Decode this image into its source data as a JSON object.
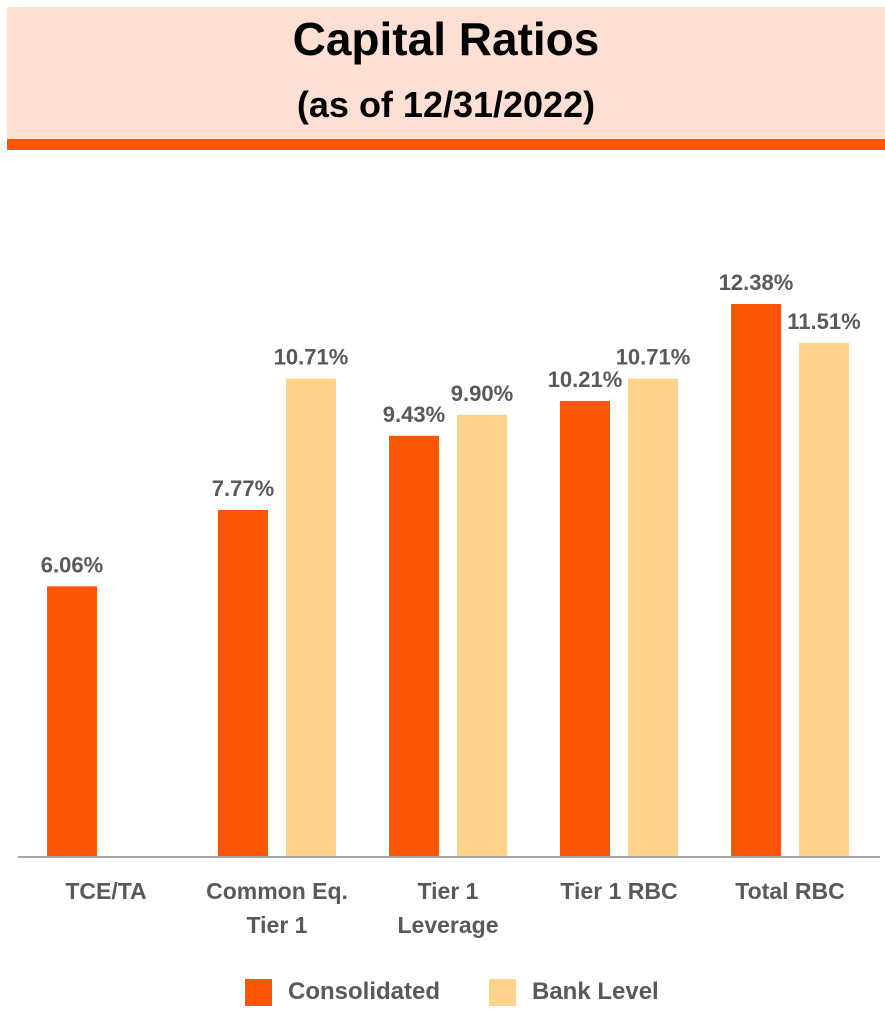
{
  "header": {
    "title": "Capital Ratios",
    "subtitle": "(as of 12/31/2022)"
  },
  "colors": {
    "banner_bg": "#fde0d3",
    "accent": "#fb5607",
    "consolidated": "#fb5607",
    "bank_level": "#fdd38c",
    "label_text": "#595959",
    "axis": "#a6a6a6"
  },
  "chart_data": {
    "type": "bar",
    "title": "Capital Ratios",
    "subtitle": "(as of 12/31/2022)",
    "xlabel": "",
    "ylabel": "",
    "ylim": [
      0,
      12.38
    ],
    "grid": false,
    "legend_position": "bottom",
    "categories": [
      [
        "TCE/TA"
      ],
      [
        "Common Eq.",
        "Tier 1"
      ],
      [
        "Tier 1",
        "Leverage"
      ],
      [
        "Tier 1 RBC"
      ],
      [
        "Total RBC"
      ]
    ],
    "series": [
      {
        "name": "Consolidated",
        "color": "#fb5607",
        "values": [
          6.06,
          7.77,
          9.43,
          10.21,
          12.38
        ],
        "labels": [
          "6.06%",
          "7.77%",
          "9.43%",
          "10.21%",
          "12.38%"
        ]
      },
      {
        "name": "Bank Level",
        "color": "#fdd38c",
        "values": [
          null,
          10.71,
          9.9,
          10.71,
          11.51
        ],
        "labels": [
          null,
          "10.71%",
          "9.90%",
          "10.71%",
          "11.51%"
        ]
      }
    ]
  }
}
